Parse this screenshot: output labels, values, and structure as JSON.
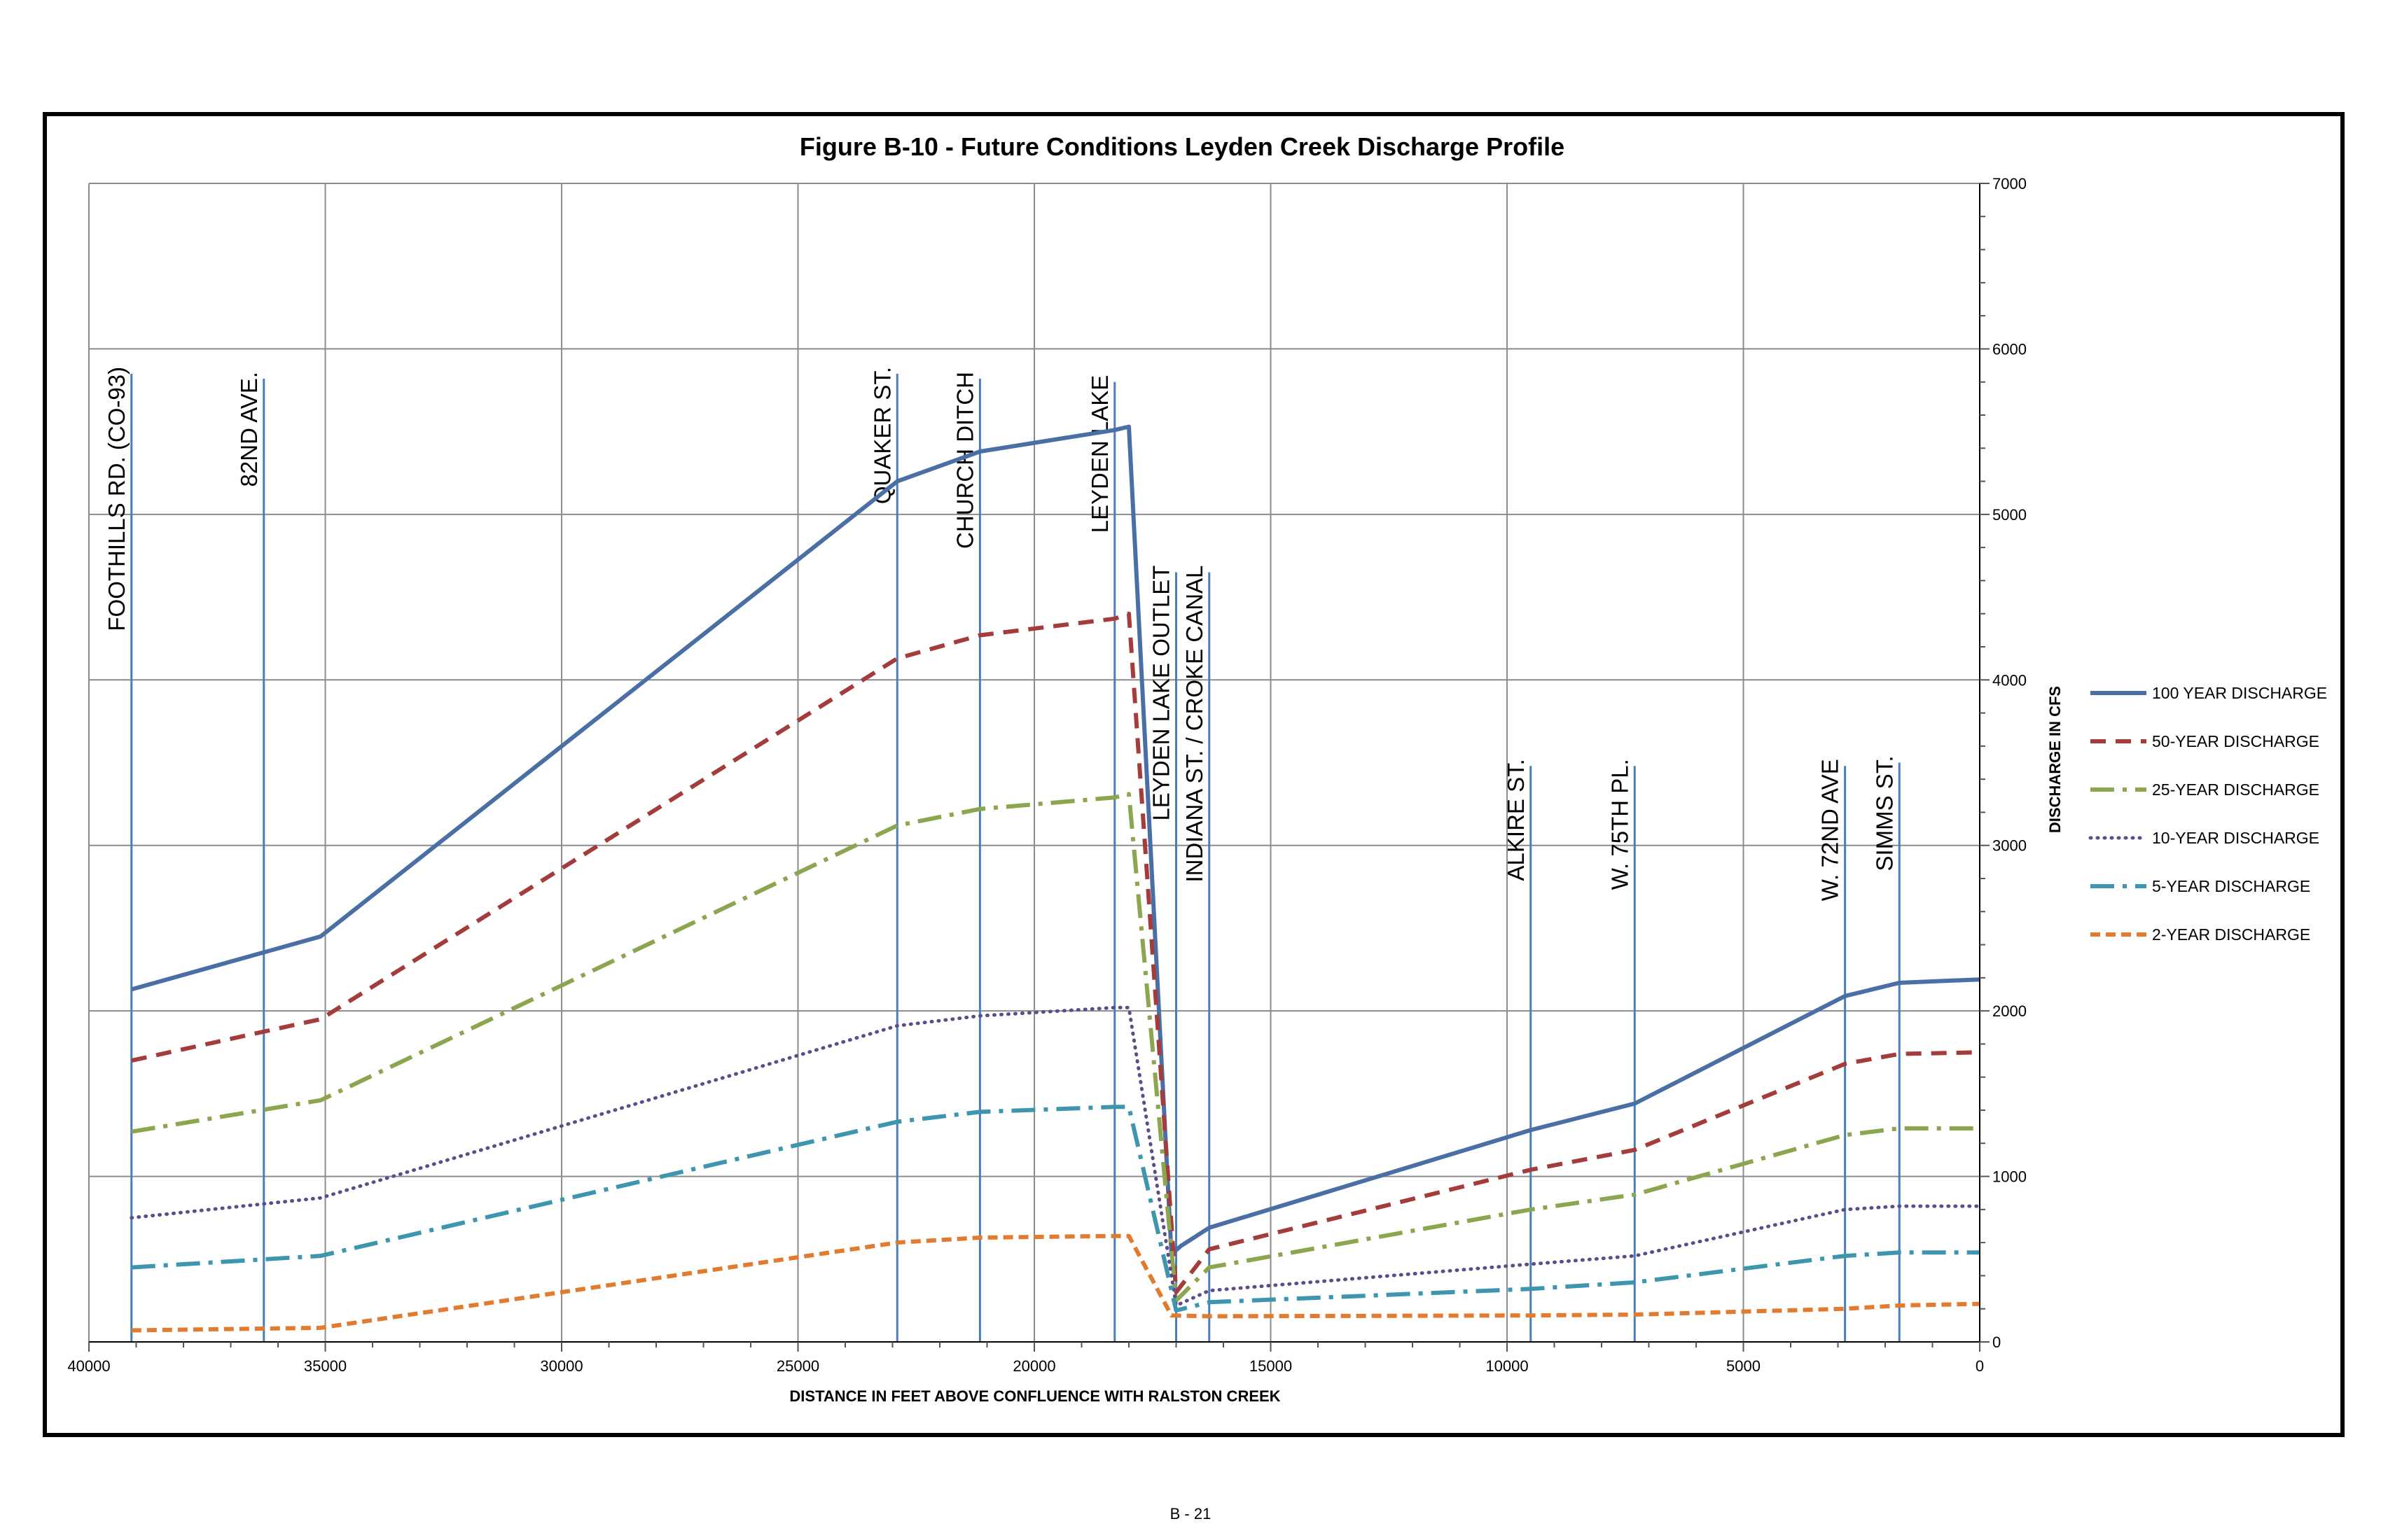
{
  "page": {
    "page_number": "B - 21"
  },
  "chart_data": {
    "type": "line",
    "title": "Figure B-10 - Future Conditions Leyden Creek Discharge Profile",
    "xlabel": "DISTANCE IN FEET ABOVE CONFLUENCE WITH RALSTON CREEK",
    "ylabel": "DISCHARGE IN CFS",
    "xlim": [
      40000,
      0
    ],
    "ylim": [
      0,
      7000
    ],
    "x_reversed": true,
    "grid": true,
    "legend_position": "right",
    "x_ticks": [
      40000,
      35000,
      30000,
      25000,
      20000,
      15000,
      10000,
      5000,
      0
    ],
    "y_ticks": [
      0,
      1000,
      2000,
      3000,
      4000,
      5000,
      6000,
      7000
    ],
    "colors": {
      "marker_lines": "#4A7EBB",
      "grid": "#8C8C8C",
      "minor_ticks": "#8C8C8C"
    },
    "markers": [
      {
        "label": "FOOTHILLS RD. (CO-93)",
        "x": 39100,
        "top": 5850
      },
      {
        "label": "82ND AVE.",
        "x": 36300,
        "top": 5820
      },
      {
        "label": "QUAKER ST.",
        "x": 22900,
        "top": 5850
      },
      {
        "label": "CHURCH DITCH",
        "x": 21150,
        "top": 5820
      },
      {
        "label": "LEYDEN LAKE",
        "x": 18300,
        "top": 5800
      },
      {
        "label": "LEYDEN LAKE OUTLET",
        "x": 17000,
        "top": 4650
      },
      {
        "label": "INDIANA ST. / CROKE CANAL",
        "x": 16300,
        "top": 4650
      },
      {
        "label": "ALKIRE ST.",
        "x": 9500,
        "top": 3480
      },
      {
        "label": "W. 75TH PL.",
        "x": 7300,
        "top": 3480
      },
      {
        "label": "W. 72ND AVE",
        "x": 2850,
        "top": 3480
      },
      {
        "label": "SIMMS ST.",
        "x": 1700,
        "top": 3500
      }
    ],
    "series": [
      {
        "name": "100 YEAR DISCHARGE",
        "color": "#4A6FA5",
        "dash": "solid",
        "x": [
          39100,
          35100,
          22900,
          21150,
          18300,
          18000,
          17100,
          16900,
          16300,
          9500,
          7300,
          2850,
          1700,
          0
        ],
        "y": [
          2130,
          2450,
          5200,
          5380,
          5510,
          5530,
          530,
          580,
          690,
          1280,
          1440,
          2090,
          2170,
          2190
        ]
      },
      {
        "name": "50-YEAR DISCHARGE",
        "color": "#A33C3A",
        "dash": "dash",
        "x": [
          39100,
          35100,
          22900,
          21150,
          18300,
          18000,
          17000,
          16300,
          9500,
          7300,
          2850,
          1700,
          0
        ],
        "y": [
          1700,
          1950,
          4130,
          4270,
          4370,
          4400,
          300,
          560,
          1040,
          1160,
          1680,
          1740,
          1750
        ]
      },
      {
        "name": "25-YEAR DISCHARGE",
        "color": "#8BA64E",
        "dash": "dashdot",
        "x": [
          39100,
          35100,
          22900,
          21150,
          18300,
          18000,
          17000,
          16300,
          9500,
          7300,
          2850,
          1700,
          0
        ],
        "y": [
          1270,
          1460,
          3120,
          3220,
          3290,
          3310,
          250,
          450,
          800,
          890,
          1250,
          1290,
          1290
        ]
      },
      {
        "name": "10-YEAR DISCHARGE",
        "color": "#5E4B8A",
        "dash": "dot",
        "x": [
          39100,
          35100,
          22900,
          21150,
          18300,
          18000,
          17000,
          16300,
          9500,
          7300,
          2850,
          1700,
          0
        ],
        "y": [
          750,
          870,
          1910,
          1970,
          2020,
          2020,
          220,
          310,
          470,
          520,
          800,
          820,
          820
        ]
      },
      {
        "name": "5-YEAR DISCHARGE",
        "color": "#3E96AE",
        "dash": "dashdot",
        "x": [
          39100,
          35100,
          22900,
          21150,
          18300,
          18000,
          17000,
          16300,
          9500,
          7300,
          2850,
          1700,
          0
        ],
        "y": [
          450,
          520,
          1330,
          1390,
          1420,
          1420,
          190,
          240,
          320,
          360,
          520,
          540,
          540
        ]
      },
      {
        "name": "2-YEAR DISCHARGE",
        "color": "#E07B2F",
        "dash": "dash2",
        "x": [
          39100,
          35100,
          22900,
          21150,
          18300,
          18000,
          17100,
          16300,
          9500,
          7300,
          2850,
          1700,
          0
        ],
        "y": [
          70,
          85,
          600,
          630,
          640,
          640,
          160,
          155,
          160,
          165,
          200,
          220,
          230
        ]
      }
    ]
  }
}
